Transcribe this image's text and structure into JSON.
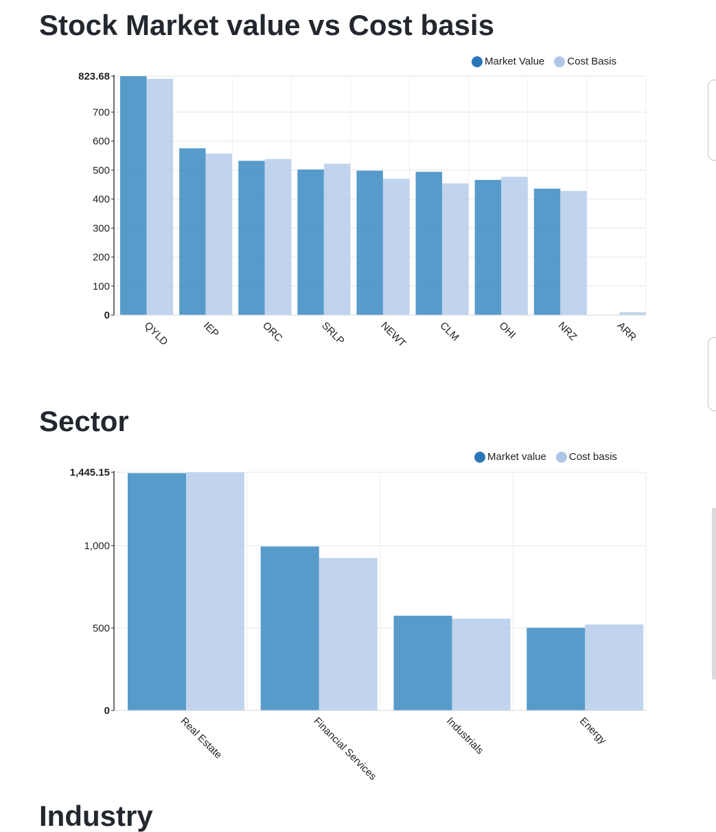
{
  "charts": {
    "stock": {
      "title": "Stock Market value vs Cost basis",
      "legend": [
        "Market Value",
        "Cost Basis"
      ]
    },
    "sector": {
      "title": "Sector",
      "legend": [
        "Market value",
        "Cost basis"
      ]
    }
  },
  "next_section_title": "Industry",
  "colors": {
    "market": "#3a89c2",
    "cost": "#b5ccea",
    "market_dot": "#2a76b8",
    "cost_dot": "#aec7e8",
    "grid": "#e4e6e8",
    "axis": "#222222"
  },
  "chart_data": [
    {
      "type": "bar",
      "title": "Stock Market value vs Cost basis",
      "categories": [
        "QYLD",
        "IEP",
        "ORC",
        "SRLP",
        "NEWT",
        "CLM",
        "OHI",
        "NRZ",
        "ARR"
      ],
      "series": [
        {
          "name": "Market Value",
          "values": [
            823.68,
            575,
            532,
            502,
            498,
            494,
            466,
            436,
            0
          ]
        },
        {
          "name": "Cost Basis",
          "values": [
            815,
            557,
            538,
            522,
            470,
            454,
            477,
            428,
            10
          ]
        }
      ],
      "ylim": [
        0,
        823.68
      ],
      "yticks": [
        0,
        100,
        200,
        300,
        400,
        500,
        600,
        700,
        823.68
      ],
      "ytick_labels": [
        "0",
        "100",
        "200",
        "300",
        "400",
        "500",
        "600",
        "700",
        "823.68"
      ],
      "legend_position": "top-right",
      "grid": true
    },
    {
      "type": "bar",
      "title": "Sector",
      "categories": [
        "Real Estate",
        "Financial Services",
        "Industrials",
        "Energy"
      ],
      "series": [
        {
          "name": "Market value",
          "values": [
            1440,
            995,
            575,
            502
          ]
        },
        {
          "name": "Cost basis",
          "values": [
            1445.15,
            925,
            557,
            522
          ]
        }
      ],
      "ylim": [
        0,
        1445.15
      ],
      "yticks": [
        0,
        500,
        1000,
        1445.15
      ],
      "ytick_labels": [
        "0",
        "500",
        "1,000",
        "1,445.15"
      ],
      "legend_position": "top-right",
      "grid": true
    }
  ]
}
